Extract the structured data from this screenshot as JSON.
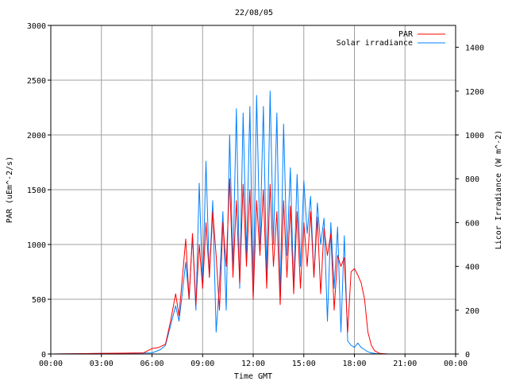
{
  "chart_data": {
    "type": "line",
    "title": "22/08/05",
    "xlabel": "Time GMT",
    "ylabel_left": "PAR (uEm^-2/s)",
    "ylabel_right": "Licor Irradiance (W m^-2)",
    "x_ticks": [
      "00:00",
      "03:00",
      "06:00",
      "09:00",
      "12:00",
      "15:00",
      "18:00",
      "21:00",
      "00:00"
    ],
    "y_left_ticks": [
      "0",
      "500",
      "1000",
      "1500",
      "2000",
      "2500",
      "3000"
    ],
    "y_right_ticks": [
      "0",
      "200",
      "400",
      "600",
      "800",
      "1000",
      "1200",
      "1400"
    ],
    "xlim_hours": [
      0,
      24
    ],
    "ylim_left": [
      0,
      3000
    ],
    "ylim_right": [
      0,
      1500
    ],
    "grid": true,
    "legend_position": "top-right",
    "series": [
      {
        "name": "PAR",
        "axis": "left",
        "color": "#ff0000",
        "x_hours": [
          0,
          5.5,
          6.0,
          6.4,
          6.8,
          7.1,
          7.4,
          7.6,
          7.8,
          8.0,
          8.2,
          8.4,
          8.6,
          8.8,
          9.0,
          9.2,
          9.4,
          9.6,
          9.8,
          10.0,
          10.2,
          10.4,
          10.6,
          10.8,
          11.0,
          11.2,
          11.4,
          11.6,
          11.8,
          12.0,
          12.2,
          12.4,
          12.6,
          12.8,
          13.0,
          13.2,
          13.4,
          13.6,
          13.8,
          14.0,
          14.2,
          14.4,
          14.6,
          14.8,
          15.0,
          15.2,
          15.4,
          15.6,
          15.8,
          16.0,
          16.2,
          16.4,
          16.6,
          16.8,
          17.0,
          17.2,
          17.4,
          17.6,
          17.8,
          18.0,
          18.2,
          18.4,
          18.6,
          18.8,
          19.0,
          19.2,
          19.5,
          20.0,
          24
        ],
        "values": [
          0,
          10,
          50,
          60,
          90,
          300,
          550,
          350,
          700,
          1050,
          500,
          1100,
          450,
          1000,
          600,
          1200,
          700,
          1300,
          900,
          400,
          1200,
          800,
          1600,
          700,
          1400,
          650,
          1550,
          800,
          1500,
          500,
          1400,
          900,
          1500,
          600,
          1550,
          800,
          1300,
          450,
          1400,
          700,
          1350,
          550,
          1300,
          600,
          1200,
          800,
          1300,
          700,
          1250,
          550,
          1150,
          900,
          1100,
          400,
          900,
          800,
          880,
          200,
          750,
          780,
          720,
          650,
          500,
          200,
          80,
          30,
          5,
          0,
          0
        ]
      },
      {
        "name": "Solar irradiance",
        "axis": "right",
        "color": "#0080ff",
        "x_hours": [
          0,
          6.0,
          6.5,
          6.8,
          7.1,
          7.4,
          7.6,
          7.8,
          8.0,
          8.2,
          8.4,
          8.6,
          8.8,
          9.0,
          9.2,
          9.4,
          9.6,
          9.8,
          10.0,
          10.2,
          10.4,
          10.6,
          10.8,
          11.0,
          11.2,
          11.4,
          11.6,
          11.8,
          12.0,
          12.2,
          12.4,
          12.6,
          12.8,
          13.0,
          13.2,
          13.4,
          13.6,
          13.8,
          14.0,
          14.2,
          14.4,
          14.6,
          14.8,
          15.0,
          15.2,
          15.4,
          15.6,
          15.8,
          16.0,
          16.2,
          16.4,
          16.6,
          16.8,
          17.0,
          17.2,
          17.4,
          17.6,
          17.8,
          18.0,
          18.2,
          18.4,
          18.6,
          18.8,
          19.0,
          19.5,
          24
        ],
        "values": [
          0,
          5,
          20,
          40,
          130,
          220,
          150,
          280,
          420,
          250,
          540,
          200,
          780,
          300,
          880,
          350,
          700,
          100,
          320,
          650,
          200,
          1000,
          400,
          1120,
          300,
          1100,
          450,
          1130,
          250,
          1180,
          500,
          1130,
          350,
          1200,
          500,
          1100,
          250,
          1050,
          450,
          850,
          300,
          820,
          400,
          790,
          550,
          720,
          350,
          690,
          500,
          620,
          150,
          600,
          300,
          580,
          100,
          540,
          60,
          40,
          30,
          50,
          30,
          20,
          10,
          5,
          0,
          0
        ]
      }
    ]
  }
}
